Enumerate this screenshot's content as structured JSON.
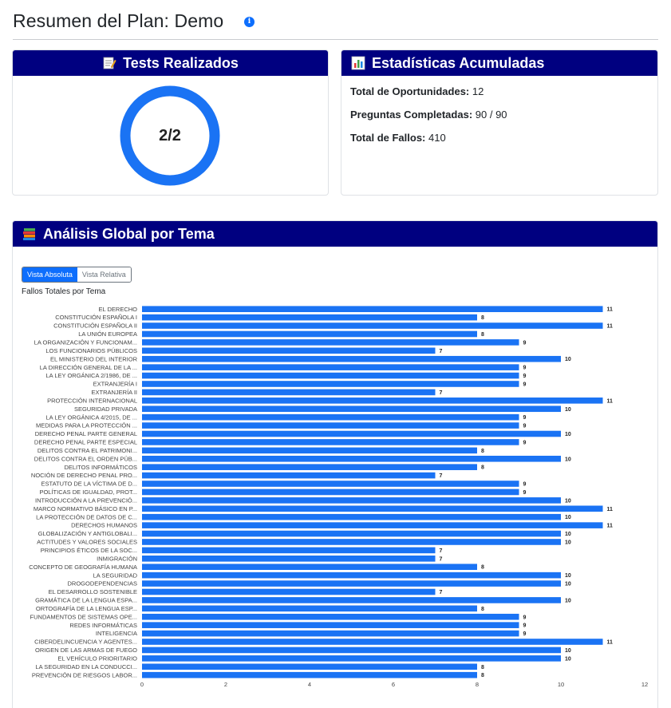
{
  "page": {
    "title": "Resumen del Plan: Demo",
    "info_icon": "info-icon"
  },
  "tests_card": {
    "title": "Tests Realizados",
    "icon": "memo-icon",
    "value": "2/2",
    "completed": 2,
    "total": 2,
    "ring_color": "#1a73f4"
  },
  "stats_card": {
    "title": "Estadísticas Acumuladas",
    "icon": "bar-chart-icon",
    "items": [
      {
        "label": "Total de Oportunidades:",
        "value": "12"
      },
      {
        "label": "Preguntas Completadas:",
        "value": "90 / 90"
      },
      {
        "label": "Total de Fallos:",
        "value": "410"
      }
    ]
  },
  "analysis_card": {
    "title": "Análisis Global por Tema",
    "icon": "books-icon",
    "toggle": {
      "absolute_label": "Vista Absoluta",
      "relative_label": "Vista Relativa",
      "active": "absolute"
    }
  },
  "colors": {
    "header_bg": "#000080",
    "accent": "#0d6efd",
    "bar": "#1a73f4"
  },
  "chart_data": {
    "type": "bar",
    "orientation": "horizontal",
    "title": "Fallos Totales por Tema",
    "xlim": [
      0,
      12
    ],
    "xticks": [
      0,
      2,
      4,
      6,
      8,
      10,
      12
    ],
    "grid": false,
    "categories": [
      "EL DERECHO",
      "CONSTITUCIÓN ESPAÑOLA I",
      "CONSTITUCIÓN ESPAÑOLA II",
      "LA UNIÓN EUROPEA",
      "LA ORGANIZACIÓN Y FUNCIONAM...",
      "LOS FUNCIONARIOS PÚBLICOS",
      "EL MINISTERIO DEL INTERIOR",
      "LA DIRECCIÓN GENERAL DE LA ...",
      "LA LEY ORGÁNICA 2/1986, DE ...",
      "EXTRANJERÍA I",
      "EXTRANJERÍA II",
      "PROTECCIÓN INTERNACIONAL",
      "SEGURIDAD PRIVADA",
      "LA LEY ORGÁNICA 4/2015, DE ...",
      "MEDIDAS PARA LA PROTECCIÓN ...",
      "DERECHO PENAL PARTE GENERAL",
      "DERECHO PENAL PARTE ESPECIAL",
      "DELITOS CONTRA EL PATRIMONI...",
      "DELITOS CONTRA EL ORDEN PÚB...",
      "DELITOS INFORMÁTICOS",
      "NOCIÓN DE DERECHO PENAL PRO...",
      "ESTATUTO DE LA VÍCTIMA DE D...",
      "POLÍTICAS DE IGUALDAD, PROT...",
      "INTRODUCCIÓN A LA PREVENCIÓ...",
      "MARCO NORMATIVO BÁSICO EN P...",
      "LA PROTECCIÓN DE DATOS DE C...",
      "DERECHOS HUMANOS",
      "GLOBALIZACIÓN Y ANTIGLOBALI...",
      "ACTITUDES Y VALORES SOCIALES",
      "PRINCIPIOS ÉTICOS DE LA SOC...",
      "INMIGRACIÓN",
      "CONCEPTO DE GEOGRAFÍA HUMANA",
      "LA SEGURIDAD",
      "DROGODEPENDENCIAS",
      "EL DESARROLLO SOSTENIBLE",
      "GRAMÁTICA DE LA LENGUA ESPA...",
      "ORTOGRAFÍA DE LA LENGUA ESP...",
      "FUNDAMENTOS DE SISTEMAS OPE...",
      "REDES INFORMÁTICAS",
      "INTELIGENCIA",
      "CIBERDELINCUENCIA Y AGENTES...",
      "ORIGEN DE LAS ARMAS DE FUEGO",
      "EL VEHÍCULO PRIORITARIO",
      "LA SEGURIDAD EN LA CONDUCCI...",
      "PREVENCIÓN DE RIESGOS LABOR..."
    ],
    "values": [
      11,
      8,
      11,
      8,
      9,
      7,
      10,
      9,
      9,
      9,
      7,
      11,
      10,
      9,
      9,
      10,
      9,
      8,
      10,
      8,
      7,
      9,
      9,
      10,
      11,
      10,
      11,
      10,
      10,
      7,
      7,
      8,
      10,
      10,
      7,
      10,
      8,
      9,
      9,
      9,
      11,
      10,
      10,
      8,
      8
    ]
  }
}
